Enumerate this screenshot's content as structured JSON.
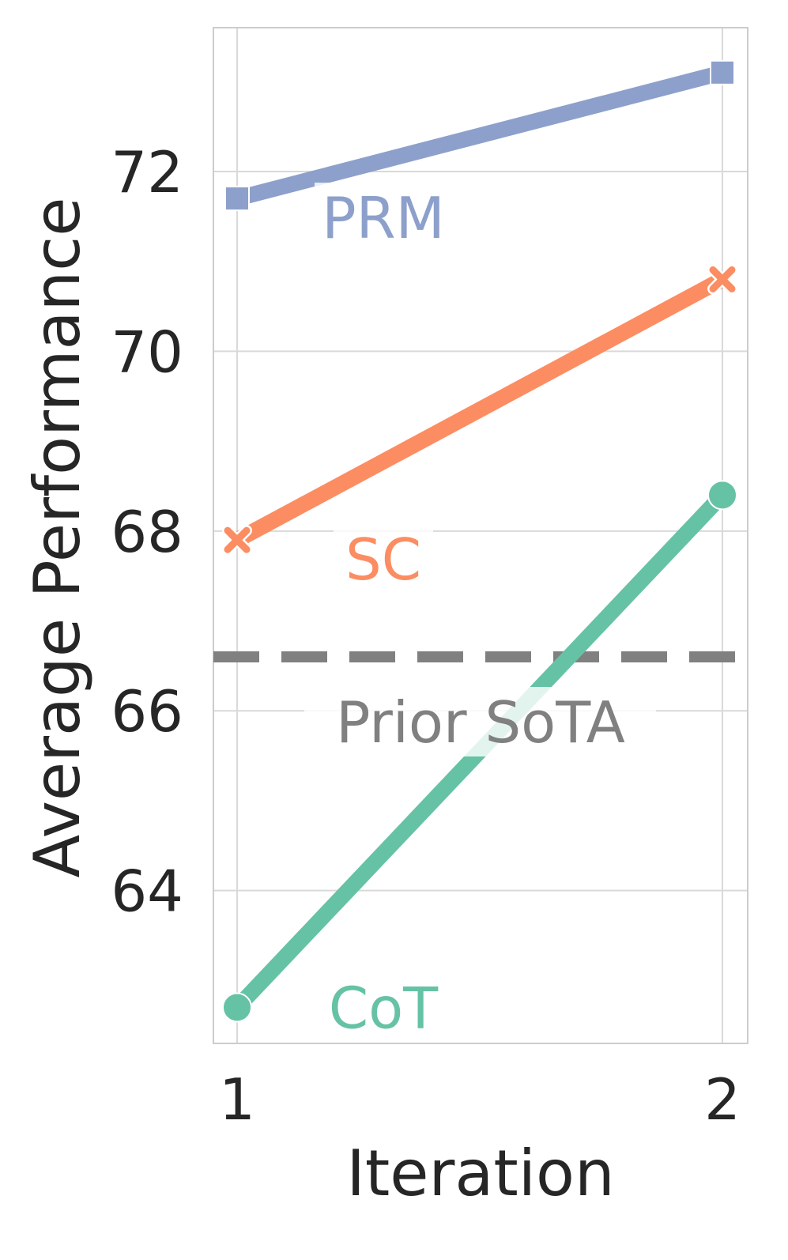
{
  "chart_data": {
    "type": "line",
    "title": "",
    "xlabel": "Iteration",
    "ylabel": "Average Performance",
    "x": [
      1,
      2
    ],
    "xticks": [
      "1",
      "2"
    ],
    "yticks": [
      "64",
      "66",
      "68",
      "70",
      "72"
    ],
    "ylim": [
      62.3,
      73.6
    ],
    "grid": true,
    "legend": "none",
    "series": [
      {
        "name": "PRM",
        "values": [
          71.7,
          73.1
        ],
        "color": "#8da0cb",
        "marker": "square"
      },
      {
        "name": "SC",
        "values": [
          67.9,
          70.8
        ],
        "color": "#fc8d62",
        "marker": "x"
      },
      {
        "name": "CoT",
        "values": [
          62.7,
          68.4
        ],
        "color": "#66c2a5",
        "marker": "circle"
      }
    ],
    "reference_lines": [
      {
        "name": "Prior SoTA",
        "value": 66.6,
        "color": "#808080",
        "style": "dashed"
      }
    ]
  }
}
